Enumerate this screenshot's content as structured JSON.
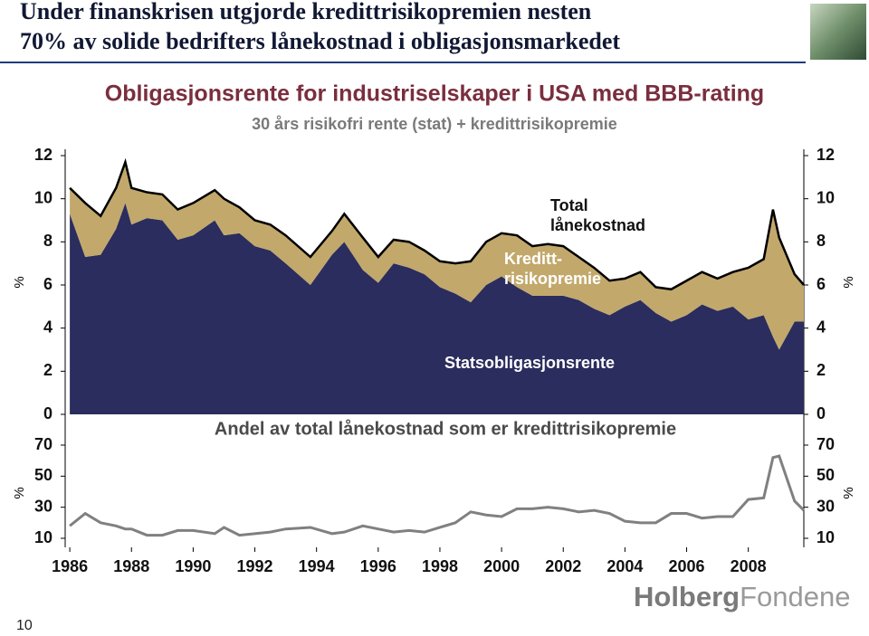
{
  "header": {
    "title_lines": [
      "Under finanskrisen utgjorde kredittrisikopremien nesten",
      "70% av solide bedrifters lånekostnad i obligasjonsmarkedet"
    ]
  },
  "footer": {
    "page": "10",
    "logo": [
      "Holberg",
      "Fondene"
    ]
  },
  "chart_data": [
    {
      "type": "area",
      "stacked": true,
      "title": "Obligasjonsrente for industriselskaper i USA med BBB-rating",
      "subtitle": "30 års risikofri rente (stat) + kredittrisikopremie",
      "y_label": "%",
      "y2_label": "%",
      "annotations": [
        {
          "lines": [
            "Total",
            "lånekostnad"
          ]
        },
        {
          "lines": [
            "Kreditt-",
            "risikopremie"
          ]
        }
      ],
      "x": [
        1986.0,
        1986.5,
        1987.0,
        1987.5,
        1987.8,
        1988.0,
        1988.5,
        1989.0,
        1989.5,
        1990.0,
        1990.7,
        1991.0,
        1991.5,
        1992.0,
        1992.5,
        1993.0,
        1993.8,
        1994.5,
        1994.9,
        1995.5,
        1996.0,
        1996.5,
        1997.0,
        1997.5,
        1998.0,
        1998.5,
        1999.0,
        1999.5,
        2000.0,
        2000.5,
        2001.0,
        2001.5,
        2002.0,
        2002.5,
        2003.0,
        2003.5,
        2004.0,
        2004.5,
        2005.0,
        2005.5,
        2006.0,
        2006.5,
        2007.0,
        2007.5,
        2008.0,
        2008.5,
        2008.8,
        2009.0,
        2009.5,
        2009.8
      ],
      "series": [
        {
          "name": "Statsobligasjonsrente",
          "color": "#2b2d5e",
          "values": [
            9.3,
            7.3,
            7.4,
            8.6,
            9.8,
            8.8,
            9.1,
            9.0,
            8.1,
            8.3,
            9.0,
            8.3,
            8.4,
            7.8,
            7.6,
            7.0,
            6.0,
            7.4,
            8.0,
            6.7,
            6.1,
            7.0,
            6.8,
            6.5,
            5.9,
            5.6,
            5.2,
            6.0,
            6.4,
            5.9,
            5.5,
            5.5,
            5.5,
            5.3,
            4.9,
            4.6,
            5.0,
            5.3,
            4.7,
            4.3,
            4.6,
            5.1,
            4.8,
            5.0,
            4.4,
            4.6,
            3.6,
            3.0,
            4.3,
            4.3
          ]
        },
        {
          "color": "#c2a86b",
          "line_color": "#000000",
          "values": [
            1.2,
            2.5,
            1.8,
            1.9,
            1.9,
            1.7,
            1.2,
            1.2,
            1.4,
            1.5,
            1.4,
            1.7,
            1.2,
            1.2,
            1.2,
            1.3,
            1.3,
            1.1,
            1.3,
            1.5,
            1.2,
            1.1,
            1.2,
            1.1,
            1.2,
            1.4,
            1.9,
            2.0,
            2.0,
            2.4,
            2.3,
            2.4,
            2.3,
            2.0,
            1.9,
            1.6,
            1.3,
            1.3,
            1.2,
            1.5,
            1.6,
            1.5,
            1.5,
            1.6,
            2.4,
            2.6,
            5.9,
            5.2,
            2.2,
            1.7
          ]
        }
      ],
      "xlim": [
        1985.85,
        2009.8
      ],
      "ylim": [
        0,
        12
      ],
      "yticks": [
        0,
        2,
        4,
        6,
        8,
        10,
        12
      ],
      "y2lim": [
        0,
        12
      ],
      "y2ticks": [
        0,
        2,
        4,
        6,
        8,
        10,
        12
      ]
    },
    {
      "type": "line",
      "title": "Andel av total lånekostnad som er kredittrisikopremie",
      "y_label": "%",
      "y2_label": "%",
      "x": [
        1986.0,
        1986.5,
        1987.0,
        1987.5,
        1987.8,
        1988.0,
        1988.5,
        1989.0,
        1989.5,
        1990.0,
        1990.7,
        1991.0,
        1991.5,
        1992.0,
        1992.5,
        1993.0,
        1993.8,
        1994.5,
        1994.9,
        1995.5,
        1996.0,
        1996.5,
        1997.0,
        1997.5,
        1998.0,
        1998.5,
        1999.0,
        1999.5,
        2000.0,
        2000.5,
        2001.0,
        2001.5,
        2002.0,
        2002.5,
        2003.0,
        2003.5,
        2004.0,
        2004.5,
        2005.0,
        2005.5,
        2006.0,
        2006.5,
        2007.0,
        2007.5,
        2008.0,
        2008.5,
        2008.8,
        2009.0,
        2009.5,
        2009.8
      ],
      "series": [
        {
          "color": "#808080",
          "values": [
            18,
            26,
            20,
            18,
            16,
            16,
            12,
            12,
            15,
            15,
            13,
            17,
            12,
            13,
            14,
            16,
            17,
            13,
            14,
            18,
            16,
            14,
            15,
            14,
            17,
            20,
            27,
            25,
            24,
            29,
            29,
            30,
            29,
            27,
            28,
            26,
            21,
            20,
            20,
            26,
            26,
            23,
            24,
            24,
            35,
            36,
            62,
            63,
            34,
            28
          ]
        }
      ],
      "xlim": [
        1985.85,
        2009.8
      ],
      "xticks": [
        1986,
        1988,
        1990,
        1992,
        1994,
        1996,
        1998,
        2000,
        2002,
        2004,
        2006,
        2008
      ],
      "ylim": [
        10,
        70
      ],
      "yticks": [
        10,
        30,
        50,
        70
      ],
      "y2lim": [
        10,
        70
      ],
      "y2ticks": [
        10,
        30,
        50,
        70
      ]
    }
  ]
}
